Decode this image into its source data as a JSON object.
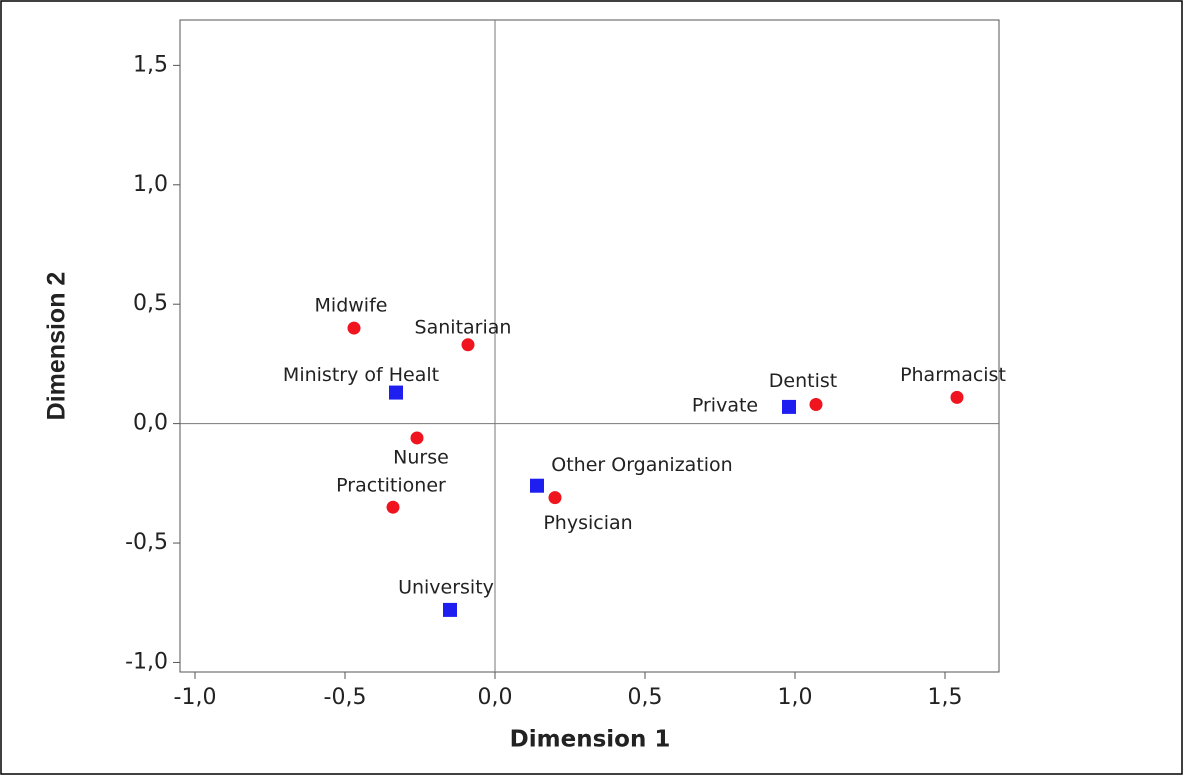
{
  "chart_data": {
    "type": "scatter",
    "xlabel": "Dimension 1",
    "ylabel": "Dimension 2",
    "xlim": [
      -1.05,
      1.68
    ],
    "ylim": [
      -1.04,
      1.69
    ],
    "xticks": [
      {
        "value": -1.0,
        "label": "-1,0"
      },
      {
        "value": -0.5,
        "label": "-0,5"
      },
      {
        "value": 0,
        "label": "0,0"
      },
      {
        "value": 0.5,
        "label": "0,5"
      },
      {
        "value": 1.0,
        "label": "1,0"
      },
      {
        "value": 1.5,
        "label": "1,5"
      }
    ],
    "yticks": [
      {
        "value": -1.0,
        "label": "-1,0"
      },
      {
        "value": -0.5,
        "label": "-0,5"
      },
      {
        "value": 0,
        "label": "0,0"
      },
      {
        "value": 0.5,
        "label": "0,5"
      },
      {
        "value": 1.0,
        "label": "1,0"
      },
      {
        "value": 1.5,
        "label": "1,5"
      }
    ],
    "series": [
      {
        "color": "#f0141e",
        "marker": "circle",
        "labels": [
          "Midwife",
          "Sanitarian",
          "Nurse",
          "Practitioner",
          "Physician",
          "Dentist",
          "Pharmacist"
        ],
        "x": [
          -0.47,
          -0.09,
          -0.26,
          -0.34,
          0.2,
          1.07,
          1.54
        ],
        "y": [
          0.4,
          0.33,
          -0.06,
          -0.35,
          -0.31,
          0.08,
          0.11
        ]
      },
      {
        "color": "#1e1ef0",
        "marker": "square",
        "labels": [
          "Ministry of Healt",
          "Private",
          "Other Organization",
          "University"
        ],
        "x": [
          -0.33,
          0.98,
          0.14,
          -0.15
        ],
        "y": [
          0.13,
          0.07,
          -0.26,
          -0.78
        ]
      }
    ]
  }
}
